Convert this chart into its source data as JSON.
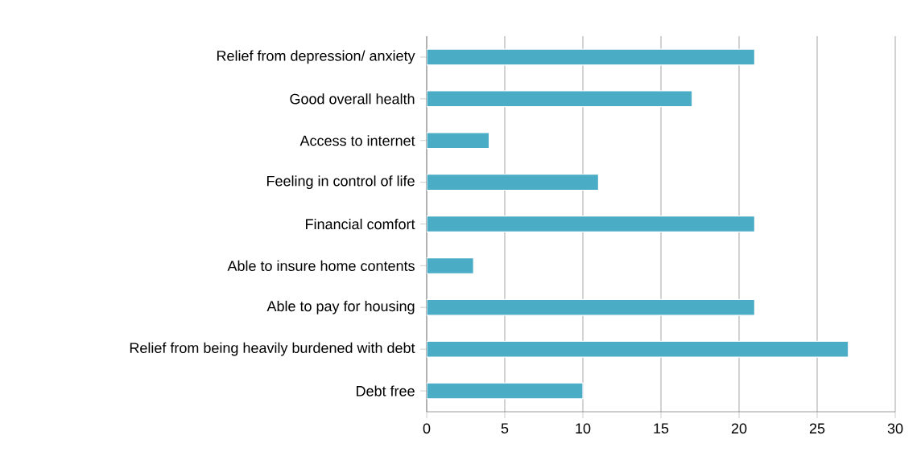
{
  "chart_data": {
    "type": "bar",
    "orientation": "horizontal",
    "categories": [
      "Relief from depression/ anxiety",
      "Good overall health",
      "Access to internet",
      "Feeling in control of life",
      "Financial comfort",
      "Able to insure home contents",
      "Able to pay for housing",
      "Relief from being heavily burdened with debt",
      "Debt free"
    ],
    "values": [
      21,
      17,
      4,
      11,
      21,
      3,
      21,
      27,
      10
    ],
    "color": "#4bacc6",
    "xlim": [
      0,
      30
    ],
    "xticks": [
      0,
      5,
      10,
      15,
      20,
      25,
      30
    ],
    "grid": "x"
  }
}
